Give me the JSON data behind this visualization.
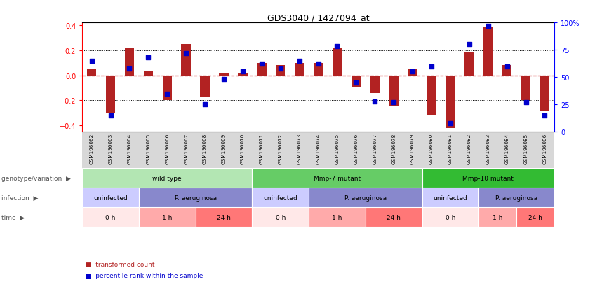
{
  "title": "GDS3040 / 1427094_at",
  "samples": [
    "GSM196062",
    "GSM196063",
    "GSM196064",
    "GSM196065",
    "GSM196066",
    "GSM196067",
    "GSM196068",
    "GSM196069",
    "GSM196070",
    "GSM196071",
    "GSM196072",
    "GSM196073",
    "GSM196074",
    "GSM196075",
    "GSM196076",
    "GSM196077",
    "GSM196078",
    "GSM196079",
    "GSM196080",
    "GSM196081",
    "GSM196082",
    "GSM196083",
    "GSM196084",
    "GSM196085",
    "GSM196086"
  ],
  "bar_values": [
    0.05,
    -0.3,
    0.22,
    0.03,
    -0.2,
    0.25,
    -0.17,
    0.02,
    0.02,
    0.1,
    0.08,
    0.1,
    0.1,
    0.22,
    -0.1,
    -0.14,
    -0.24,
    0.05,
    -0.32,
    -0.42,
    0.18,
    0.38,
    0.08,
    -0.2,
    -0.28
  ],
  "blue_values": [
    65,
    15,
    58,
    68,
    35,
    72,
    25,
    48,
    55,
    62,
    58,
    65,
    62,
    78,
    45,
    28,
    27,
    55,
    60,
    8,
    80,
    97,
    60,
    27,
    15
  ],
  "ylim_left": [
    -0.45,
    0.42
  ],
  "ylim_right": [
    0,
    100
  ],
  "yticks_left": [
    -0.4,
    -0.2,
    0.0,
    0.2,
    0.4
  ],
  "yticks_right": [
    0,
    25,
    50,
    75,
    100
  ],
  "ytick_right_labels": [
    "0",
    "25",
    "50",
    "75",
    "100%"
  ],
  "bar_color": "#b22222",
  "dot_color": "#0000cc",
  "redline_color": "#cc0000",
  "bg_color": "#ffffff",
  "ticklabel_bg": "#d8d8d8",
  "row_bg": "#d8d8d8",
  "genotype_groups": [
    {
      "label": "wild type",
      "start": 0,
      "end": 8,
      "color": "#b3e6b3"
    },
    {
      "label": "Mmp-7 mutant",
      "start": 9,
      "end": 17,
      "color": "#66cc66"
    },
    {
      "label": "Mmp-10 mutant",
      "start": 18,
      "end": 24,
      "color": "#33bb33"
    }
  ],
  "infection_groups": [
    {
      "label": "uninfected",
      "start": 0,
      "end": 2,
      "color": "#ccccff"
    },
    {
      "label": "P. aeruginosa",
      "start": 3,
      "end": 8,
      "color": "#8888cc"
    },
    {
      "label": "uninfected",
      "start": 9,
      "end": 11,
      "color": "#ccccff"
    },
    {
      "label": "P. aeruginosa",
      "start": 12,
      "end": 17,
      "color": "#8888cc"
    },
    {
      "label": "uninfected",
      "start": 18,
      "end": 20,
      "color": "#ccccff"
    },
    {
      "label": "P. aeruginosa",
      "start": 21,
      "end": 24,
      "color": "#8888cc"
    }
  ],
  "time_groups": [
    {
      "label": "0 h",
      "start": 0,
      "end": 2,
      "color": "#ffe8e8"
    },
    {
      "label": "1 h",
      "start": 3,
      "end": 5,
      "color": "#ffaaaa"
    },
    {
      "label": "24 h",
      "start": 6,
      "end": 8,
      "color": "#ff7777"
    },
    {
      "label": "0 h",
      "start": 9,
      "end": 11,
      "color": "#ffe8e8"
    },
    {
      "label": "1 h",
      "start": 12,
      "end": 14,
      "color": "#ffaaaa"
    },
    {
      "label": "24 h",
      "start": 15,
      "end": 17,
      "color": "#ff7777"
    },
    {
      "label": "0 h",
      "start": 18,
      "end": 20,
      "color": "#ffe8e8"
    },
    {
      "label": "1 h",
      "start": 21,
      "end": 22,
      "color": "#ffaaaa"
    },
    {
      "label": "24 h",
      "start": 23,
      "end": 24,
      "color": "#ff7777"
    }
  ],
  "row_labels": [
    "genotype/variation",
    "infection",
    "time"
  ],
  "legend_items": [
    {
      "label": "transformed count",
      "color": "#b22222"
    },
    {
      "label": "percentile rank within the sample",
      "color": "#0000cc"
    }
  ]
}
